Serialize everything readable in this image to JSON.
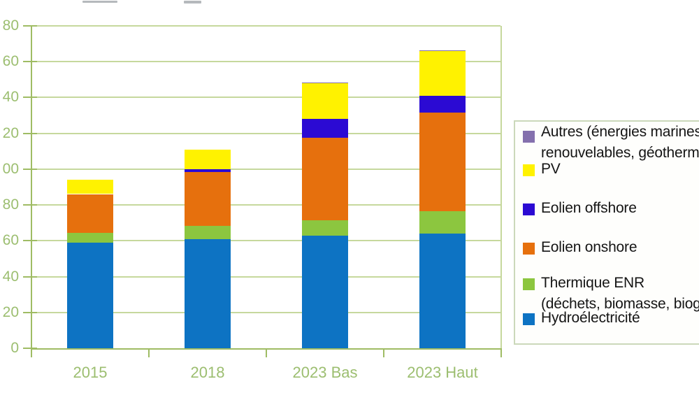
{
  "chart_data": {
    "type": "bar",
    "stacked": true,
    "title": "",
    "xlabel": "",
    "ylabel": "",
    "categories": [
      "2015",
      "2018",
      "2023 Bas",
      "2023 Haut"
    ],
    "series": [
      {
        "name": "Hydroélectricité",
        "color": "#0D73C3",
        "values": [
          59,
          61,
          63,
          64
        ]
      },
      {
        "name": "Thermique ENR (déchets, biomasse, bioga",
        "color": "#8CC63F",
        "values": [
          5.5,
          7.5,
          8.5,
          12.5
        ]
      },
      {
        "name": "Eolien onshore",
        "color": "#E6700D",
        "values": [
          21.5,
          30,
          46,
          55
        ]
      },
      {
        "name": "Eolien offshore",
        "color": "#2B0AD3",
        "values": [
          0,
          1.5,
          10.5,
          9.5
        ]
      },
      {
        "name": "PV",
        "color": "#FFF200",
        "values": [
          8,
          11,
          20,
          25
        ]
      },
      {
        "name": "Autres (énergies marines renouvelables, géothermi",
        "color": "#8470AD",
        "values": [
          0,
          0,
          0.5,
          0.5
        ]
      }
    ],
    "stack_totals": [
      94,
      111,
      148.5,
      166.5
    ],
    "ylim": [
      0,
      180
    ],
    "ytick_step": 20,
    "ytick_labels_displayed_top_to_bottom": [
      "80",
      "60",
      "40",
      "20",
      "00",
      "80",
      "60",
      "40",
      "20",
      "0"
    ],
    "grid": true,
    "legend_position": "right",
    "note": "left edge of y-axis labels (hundreds digit) is cropped out of the screenshot"
  },
  "x_axis": {
    "labels": [
      "2015",
      "2018",
      "2023 Bas",
      "2023 Haut"
    ]
  },
  "legend": {
    "items": [
      {
        "line1": "Autres (énergies marines",
        "line2": "renouvelables, géothermi",
        "color": "#8470AD"
      },
      {
        "line1": "PV",
        "line2": "",
        "color": "#FFF200"
      },
      {
        "line1": "Eolien offshore",
        "line2": "",
        "color": "#2B0AD3"
      },
      {
        "line1": "Eolien onshore",
        "line2": "",
        "color": "#E6700D"
      },
      {
        "line1": "Thermique ENR",
        "line2": "(déchets, biomasse, bioga",
        "color": "#8CC63F"
      },
      {
        "line1": "Hydroélectricité",
        "line2": "",
        "color": "#0D73C3"
      }
    ]
  },
  "colors": {
    "axis": "#9FBC64",
    "gridline": "#C6D89D",
    "tick_label": "#9CBE70",
    "legend_border": "#CBD8BA",
    "background": "#FFFFFF"
  }
}
